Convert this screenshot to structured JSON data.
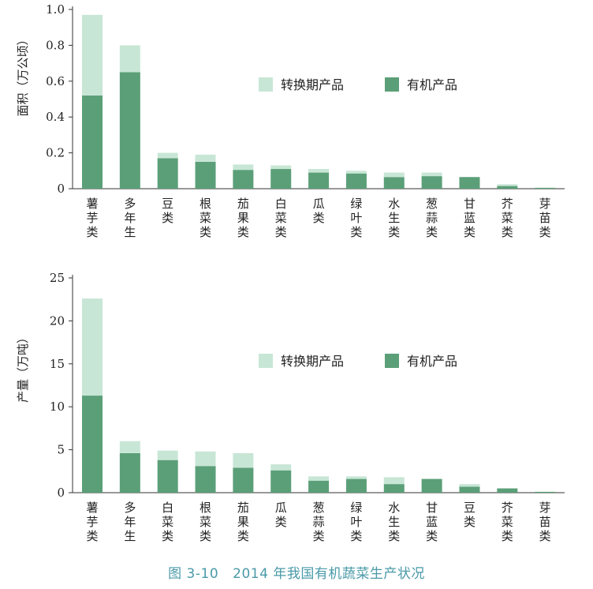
{
  "colors": {
    "organic": "#5b9f78",
    "conversion": "#c8e6d6",
    "axis": "#333333",
    "caption": "#4a9aa8"
  },
  "caption": {
    "number": "图 3-10",
    "text": "2014 年我国有机蔬菜生产状况"
  },
  "chart_data": [
    {
      "type": "bar",
      "stacked": true,
      "ylabel": "面积（万公顷）",
      "ylim": [
        0,
        1.0
      ],
      "yticks": [
        "0",
        "0.2",
        "0.4",
        "0.6",
        "0.8",
        "1.0"
      ],
      "categories": [
        "薯芋类",
        "多年生",
        "豆类",
        "根菜类",
        "茄果类",
        "白菜类",
        "瓜类",
        "绿叶类",
        "水生类",
        "葱蒜类",
        "甘蓝类",
        "芥菜类",
        "芽苗类"
      ],
      "legend_position": "middle",
      "series": [
        {
          "name": "有机产品",
          "color_key": "organic",
          "values": [
            0.52,
            0.65,
            0.17,
            0.15,
            0.105,
            0.11,
            0.09,
            0.085,
            0.065,
            0.07,
            0.065,
            0.015,
            0.005
          ]
        },
        {
          "name": "转换期产品",
          "color_key": "conversion",
          "values": [
            0.45,
            0.15,
            0.03,
            0.04,
            0.03,
            0.02,
            0.02,
            0.015,
            0.025,
            0.02,
            0.0,
            0.01,
            0.0
          ]
        }
      ]
    },
    {
      "type": "bar",
      "stacked": true,
      "ylabel": "产量（万吨）",
      "ylim": [
        0,
        25
      ],
      "yticks": [
        "0",
        "5",
        "10",
        "15",
        "20",
        "25"
      ],
      "categories": [
        "薯芋类",
        "多年生",
        "白菜类",
        "根菜类",
        "茄果类",
        "瓜类",
        "葱蒜类",
        "绿叶类",
        "水生类",
        "甘蓝类",
        "豆类",
        "芥菜类",
        "芽苗类"
      ],
      "legend_position": "middle",
      "series": [
        {
          "name": "有机产品",
          "color_key": "organic",
          "values": [
            11.3,
            4.6,
            3.8,
            3.1,
            2.9,
            2.6,
            1.4,
            1.6,
            1.0,
            1.6,
            0.7,
            0.5,
            0.1
          ]
        },
        {
          "name": "转换期产品",
          "color_key": "conversion",
          "values": [
            11.3,
            1.4,
            1.1,
            1.7,
            1.7,
            0.7,
            0.5,
            0.3,
            0.8,
            0.0,
            0.3,
            0.0,
            0.0
          ]
        }
      ]
    }
  ]
}
